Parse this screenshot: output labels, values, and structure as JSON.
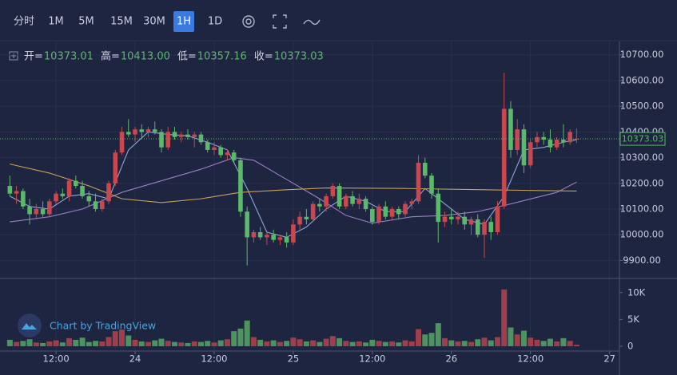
{
  "toolbar": {
    "intervals": [
      "分时",
      "1M",
      "5M",
      "15M",
      "30M",
      "1H",
      "1D"
    ],
    "selected": 5
  },
  "watermark": "Chart by TradingView",
  "chart_data": {
    "type": "candlestick",
    "up_color": "#c9484f",
    "down_color": "#5cb86a",
    "grid": true,
    "ohlc_legend": [
      {
        "label": "开=",
        "value": "10373.01"
      },
      {
        "label": "高=",
        "value": "10413.00"
      },
      {
        "label": "低=",
        "value": "10357.16"
      },
      {
        "label": "收=",
        "value": "10373.03"
      }
    ],
    "candles": [
      [
        10190,
        10230,
        10150,
        10160
      ],
      [
        10160,
        10190,
        10120,
        10170
      ],
      [
        10170,
        10180,
        10100,
        10110
      ],
      [
        10110,
        10140,
        10040,
        10080
      ],
      [
        10080,
        10120,
        10060,
        10100
      ],
      [
        10100,
        10130,
        10070,
        10080
      ],
      [
        10080,
        10140,
        10070,
        10130
      ],
      [
        10130,
        10170,
        10120,
        10160
      ],
      [
        10160,
        10180,
        10140,
        10150
      ],
      [
        10150,
        10220,
        10130,
        10210
      ],
      [
        10210,
        10230,
        10180,
        10190
      ],
      [
        10190,
        10210,
        10140,
        10150
      ],
      [
        10150,
        10170,
        10110,
        10130
      ],
      [
        10130,
        10160,
        10090,
        10100
      ],
      [
        10100,
        10140,
        10090,
        10130
      ],
      [
        10130,
        10210,
        10120,
        10200
      ],
      [
        10200,
        10330,
        10190,
        10320
      ],
      [
        10320,
        10420,
        10310,
        10400
      ],
      [
        10400,
        10450,
        10380,
        10390
      ],
      [
        10390,
        10420,
        10360,
        10410
      ],
      [
        10410,
        10430,
        10380,
        10400
      ],
      [
        10400,
        10420,
        10380,
        10410
      ],
      [
        10410,
        10440,
        10390,
        10400
      ],
      [
        10400,
        10410,
        10320,
        10340
      ],
      [
        10340,
        10420,
        10330,
        10400
      ],
      [
        10400,
        10420,
        10370,
        10380
      ],
      [
        10380,
        10400,
        10360,
        10390
      ],
      [
        10390,
        10410,
        10370,
        10380
      ],
      [
        10380,
        10400,
        10340,
        10390
      ],
      [
        10390,
        10400,
        10350,
        10360
      ],
      [
        10360,
        10370,
        10320,
        10330
      ],
      [
        10330,
        10360,
        10310,
        10340
      ],
      [
        10340,
        10350,
        10300,
        10310
      ],
      [
        10310,
        10330,
        10290,
        10320
      ],
      [
        10320,
        10330,
        10280,
        10290
      ],
      [
        10290,
        10300,
        10070,
        10090
      ],
      [
        10090,
        10110,
        9880,
        9990
      ],
      [
        9990,
        10020,
        9970,
        10010
      ],
      [
        10010,
        10030,
        9980,
        9990
      ],
      [
        9990,
        10010,
        9960,
        10000
      ],
      [
        10000,
        10020,
        9970,
        9980
      ],
      [
        9980,
        10000,
        9960,
        9990
      ],
      [
        9990,
        10010,
        9950,
        9970
      ],
      [
        9970,
        10060,
        9960,
        10040
      ],
      [
        10040,
        10090,
        10020,
        10070
      ],
      [
        10070,
        10100,
        10040,
        10060
      ],
      [
        10060,
        10130,
        10050,
        10120
      ],
      [
        10120,
        10140,
        10090,
        10110
      ],
      [
        10110,
        10160,
        10090,
        10150
      ],
      [
        10150,
        10200,
        10140,
        10190
      ],
      [
        10190,
        10200,
        10100,
        10110
      ],
      [
        10110,
        10160,
        10100,
        10150
      ],
      [
        10150,
        10170,
        10110,
        10120
      ],
      [
        10120,
        10160,
        10100,
        10140
      ],
      [
        10140,
        10150,
        10090,
        10100
      ],
      [
        10100,
        10110,
        10040,
        10050
      ],
      [
        10050,
        10120,
        10040,
        10110
      ],
      [
        10110,
        10130,
        10060,
        10070
      ],
      [
        10070,
        10110,
        10060,
        10100
      ],
      [
        10100,
        10110,
        10060,
        10080
      ],
      [
        10080,
        10130,
        10070,
        10120
      ],
      [
        10120,
        10140,
        10100,
        10130
      ],
      [
        10130,
        10310,
        10120,
        10280
      ],
      [
        10280,
        10300,
        10220,
        10230
      ],
      [
        10230,
        10240,
        10140,
        10160
      ],
      [
        10160,
        10180,
        9970,
        10050
      ],
      [
        10050,
        10090,
        10030,
        10070
      ],
      [
        10070,
        10100,
        10040,
        10060
      ],
      [
        10060,
        10090,
        10040,
        10070
      ],
      [
        10070,
        10090,
        10020,
        10040
      ],
      [
        10040,
        10070,
        10000,
        10060
      ],
      [
        10060,
        10080,
        9990,
        10000
      ],
      [
        10000,
        10060,
        9910,
        10050
      ],
      [
        10050,
        10070,
        9980,
        10010
      ],
      [
        10010,
        10130,
        10000,
        10110
      ],
      [
        10110,
        10630,
        10100,
        10490
      ],
      [
        10490,
        10520,
        10300,
        10330
      ],
      [
        10330,
        10450,
        10310,
        10410
      ],
      [
        10410,
        10430,
        10240,
        10270
      ],
      [
        10270,
        10370,
        10260,
        10360
      ],
      [
        10360,
        10400,
        10340,
        10380
      ],
      [
        10380,
        10400,
        10350,
        10370
      ],
      [
        10370,
        10410,
        10320,
        10340
      ],
      [
        10340,
        10380,
        10330,
        10370
      ],
      [
        10370,
        10430,
        10340,
        10360
      ],
      [
        10360,
        10410,
        10350,
        10400
      ],
      [
        10373.01,
        10413,
        10357.16,
        10373.03
      ]
    ],
    "volume": [
      1200,
      800,
      1000,
      1300,
      700,
      600,
      900,
      1100,
      700,
      1500,
      1200,
      1600,
      800,
      1000,
      900,
      1700,
      2800,
      3100,
      2000,
      1200,
      900,
      800,
      1100,
      1400,
      1000,
      800,
      700,
      600,
      900,
      800,
      1000,
      700,
      1100,
      1300,
      2800,
      3300,
      4800,
      1700,
      1200,
      900,
      1100,
      800,
      1000,
      1600,
      1300,
      900,
      1100,
      800,
      1400,
      1900,
      1500,
      1000,
      800,
      900,
      700,
      1200,
      1000,
      800,
      900,
      700,
      1100,
      900,
      3200,
      2200,
      2500,
      4300,
      1500,
      1100,
      900,
      1000,
      800,
      1300,
      1600,
      1100,
      1700,
      10600,
      3500,
      2200,
      2900,
      1600,
      1200,
      1000,
      1400,
      900,
      1500,
      1000,
      300
    ],
    "indicators": [
      {
        "color": "#8fa6d8",
        "x": [
          0,
          3,
          6,
          9,
          12,
          15,
          18,
          21,
          24,
          27,
          30,
          33,
          36,
          39,
          42,
          45,
          48,
          51,
          54,
          57,
          60,
          63,
          66,
          69,
          72,
          75,
          78,
          81,
          84,
          86
        ],
        "values": [
          10150,
          10110,
          10100,
          10150,
          10160,
          10140,
          10330,
          10400,
          10390,
          10385,
          10360,
          10330,
          10180,
          10010,
          9990,
          10030,
          10100,
          10150,
          10130,
          10090,
          10090,
          10180,
          10120,
          10060,
          10040,
          10150,
          10330,
          10340,
          10360,
          10370
        ]
      },
      {
        "color": "#9b7fc4",
        "x": [
          0,
          6,
          11,
          17,
          23,
          29,
          34,
          37,
          42,
          47,
          51,
          55,
          61,
          66,
          71,
          76,
          83,
          86
        ],
        "values": [
          10050,
          10070,
          10100,
          10165,
          10210,
          10255,
          10300,
          10290,
          10215,
          10140,
          10075,
          10045,
          10070,
          10075,
          10090,
          10120,
          10165,
          10205
        ]
      },
      {
        "color": "#c9a25a",
        "x": [
          0,
          6,
          12,
          17,
          23,
          29,
          35,
          42,
          48,
          60,
          72,
          86
        ],
        "values": [
          10275,
          10240,
          10190,
          10140,
          10125,
          10140,
          10165,
          10175,
          10182,
          10180,
          10175,
          10170
        ]
      }
    ],
    "xlim": [
      -1.5,
      92.5
    ],
    "xticks": [
      {
        "value": 7,
        "label": "12:00"
      },
      {
        "value": 19,
        "label": "24"
      },
      {
        "value": 31,
        "label": "12:00"
      },
      {
        "value": 43,
        "label": "25"
      },
      {
        "value": 55,
        "label": "12:00"
      },
      {
        "value": 67,
        "label": "26"
      },
      {
        "value": 79,
        "label": "12:00"
      },
      {
        "value": 91,
        "label": "27"
      }
    ],
    "ylim": [
      9833,
      10752
    ],
    "yticks": [
      {
        "value": 9900,
        "label": "9900.00"
      },
      {
        "value": 10000,
        "label": "10000.00"
      },
      {
        "value": 10100,
        "label": "10100.00"
      },
      {
        "value": 10200,
        "label": "10200.00"
      },
      {
        "value": 10300,
        "label": "10300.00"
      },
      {
        "value": 10400,
        "label": "10400.00"
      },
      {
        "value": 10500,
        "label": "10500.00"
      },
      {
        "value": 10600,
        "label": "10600.00"
      },
      {
        "value": 10700,
        "label": "10700.00"
      }
    ],
    "volume_ylim": [
      -900,
      12500
    ],
    "volume_yticks": [
      0,
      {
        "value": 5000,
        "label": "5K"
      },
      {
        "value": 10000,
        "label": "10K"
      }
    ]
  }
}
